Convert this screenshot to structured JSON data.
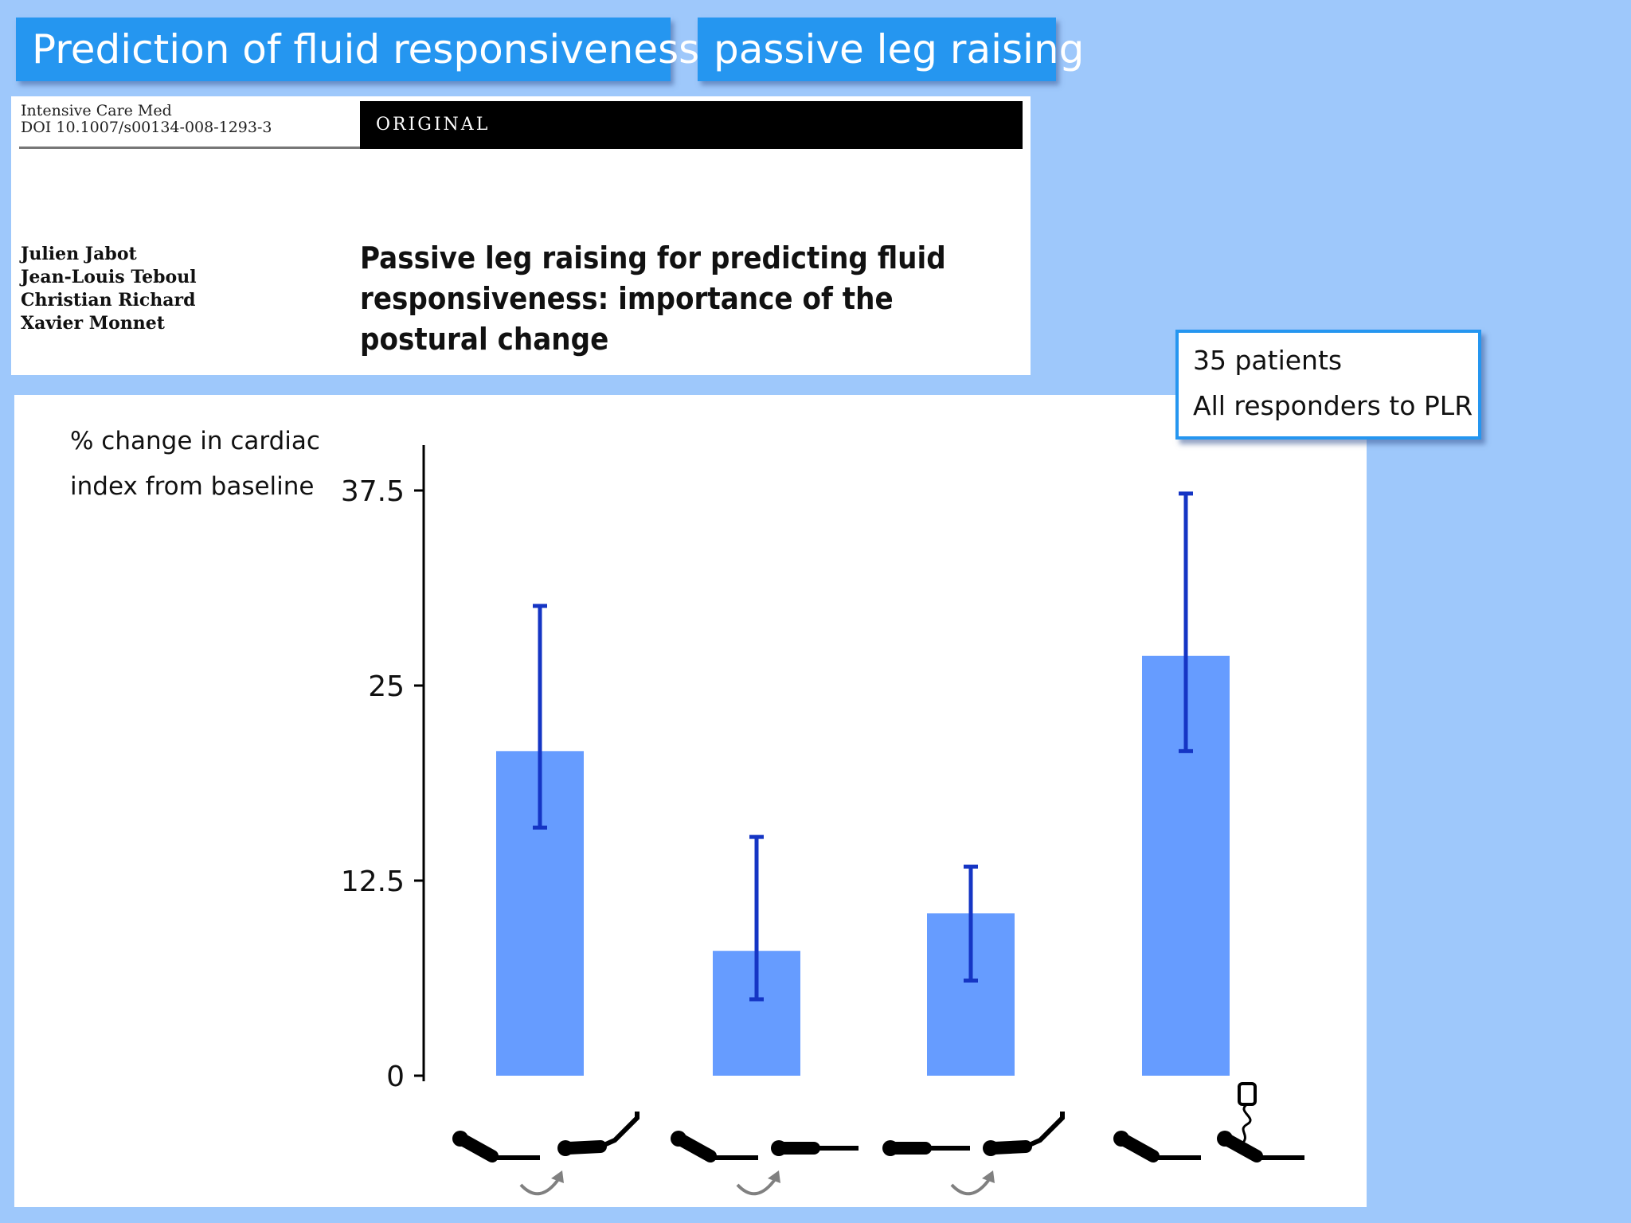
{
  "header": {
    "title": "Prediction of fluid responsiveness",
    "subtitle": "passive leg raising"
  },
  "paper": {
    "journal": "Intensive Care Med",
    "doi": "DOI 10.1007/s00134-008-1293-3",
    "section": "ORIGINAL",
    "authors": [
      "Julien Jabot",
      "Jean-Louis Teboul",
      "Christian Richard",
      "Xavier Monnet"
    ],
    "title": "Passive leg raising for predicting fluid responsiveness: importance of the postural change"
  },
  "callout": {
    "line1": "35 patients",
    "line2": "All responders to PLR"
  },
  "chart_data": {
    "type": "bar",
    "ylabel": "% change in cardiac index from baseline",
    "ylim": [
      0,
      40
    ],
    "yticks": [
      "0",
      "12.5",
      "25",
      "37.5"
    ],
    "ytick_values": [
      0,
      12.5,
      25,
      37.5
    ],
    "categories": [
      "",
      "",
      "",
      ""
    ],
    "values": [
      20.8,
      8,
      10.4,
      26.9
    ],
    "error_low": [
      15.9,
      4.9,
      6.1,
      20.8
    ],
    "error_high": [
      30.1,
      15.3,
      13.4,
      37.3
    ],
    "bar_color": "#669cff",
    "error_color": "#1535c4",
    "x_icons": [
      "semi-recumbent-to-plr-icon",
      "supine-to-plr-icon",
      "supine-to-plr-icon",
      "fluid-infusion-icon"
    ]
  },
  "colors": {
    "background": "#9ec8fb",
    "title_box": "#2596f0",
    "title_text": "#ffffff"
  }
}
